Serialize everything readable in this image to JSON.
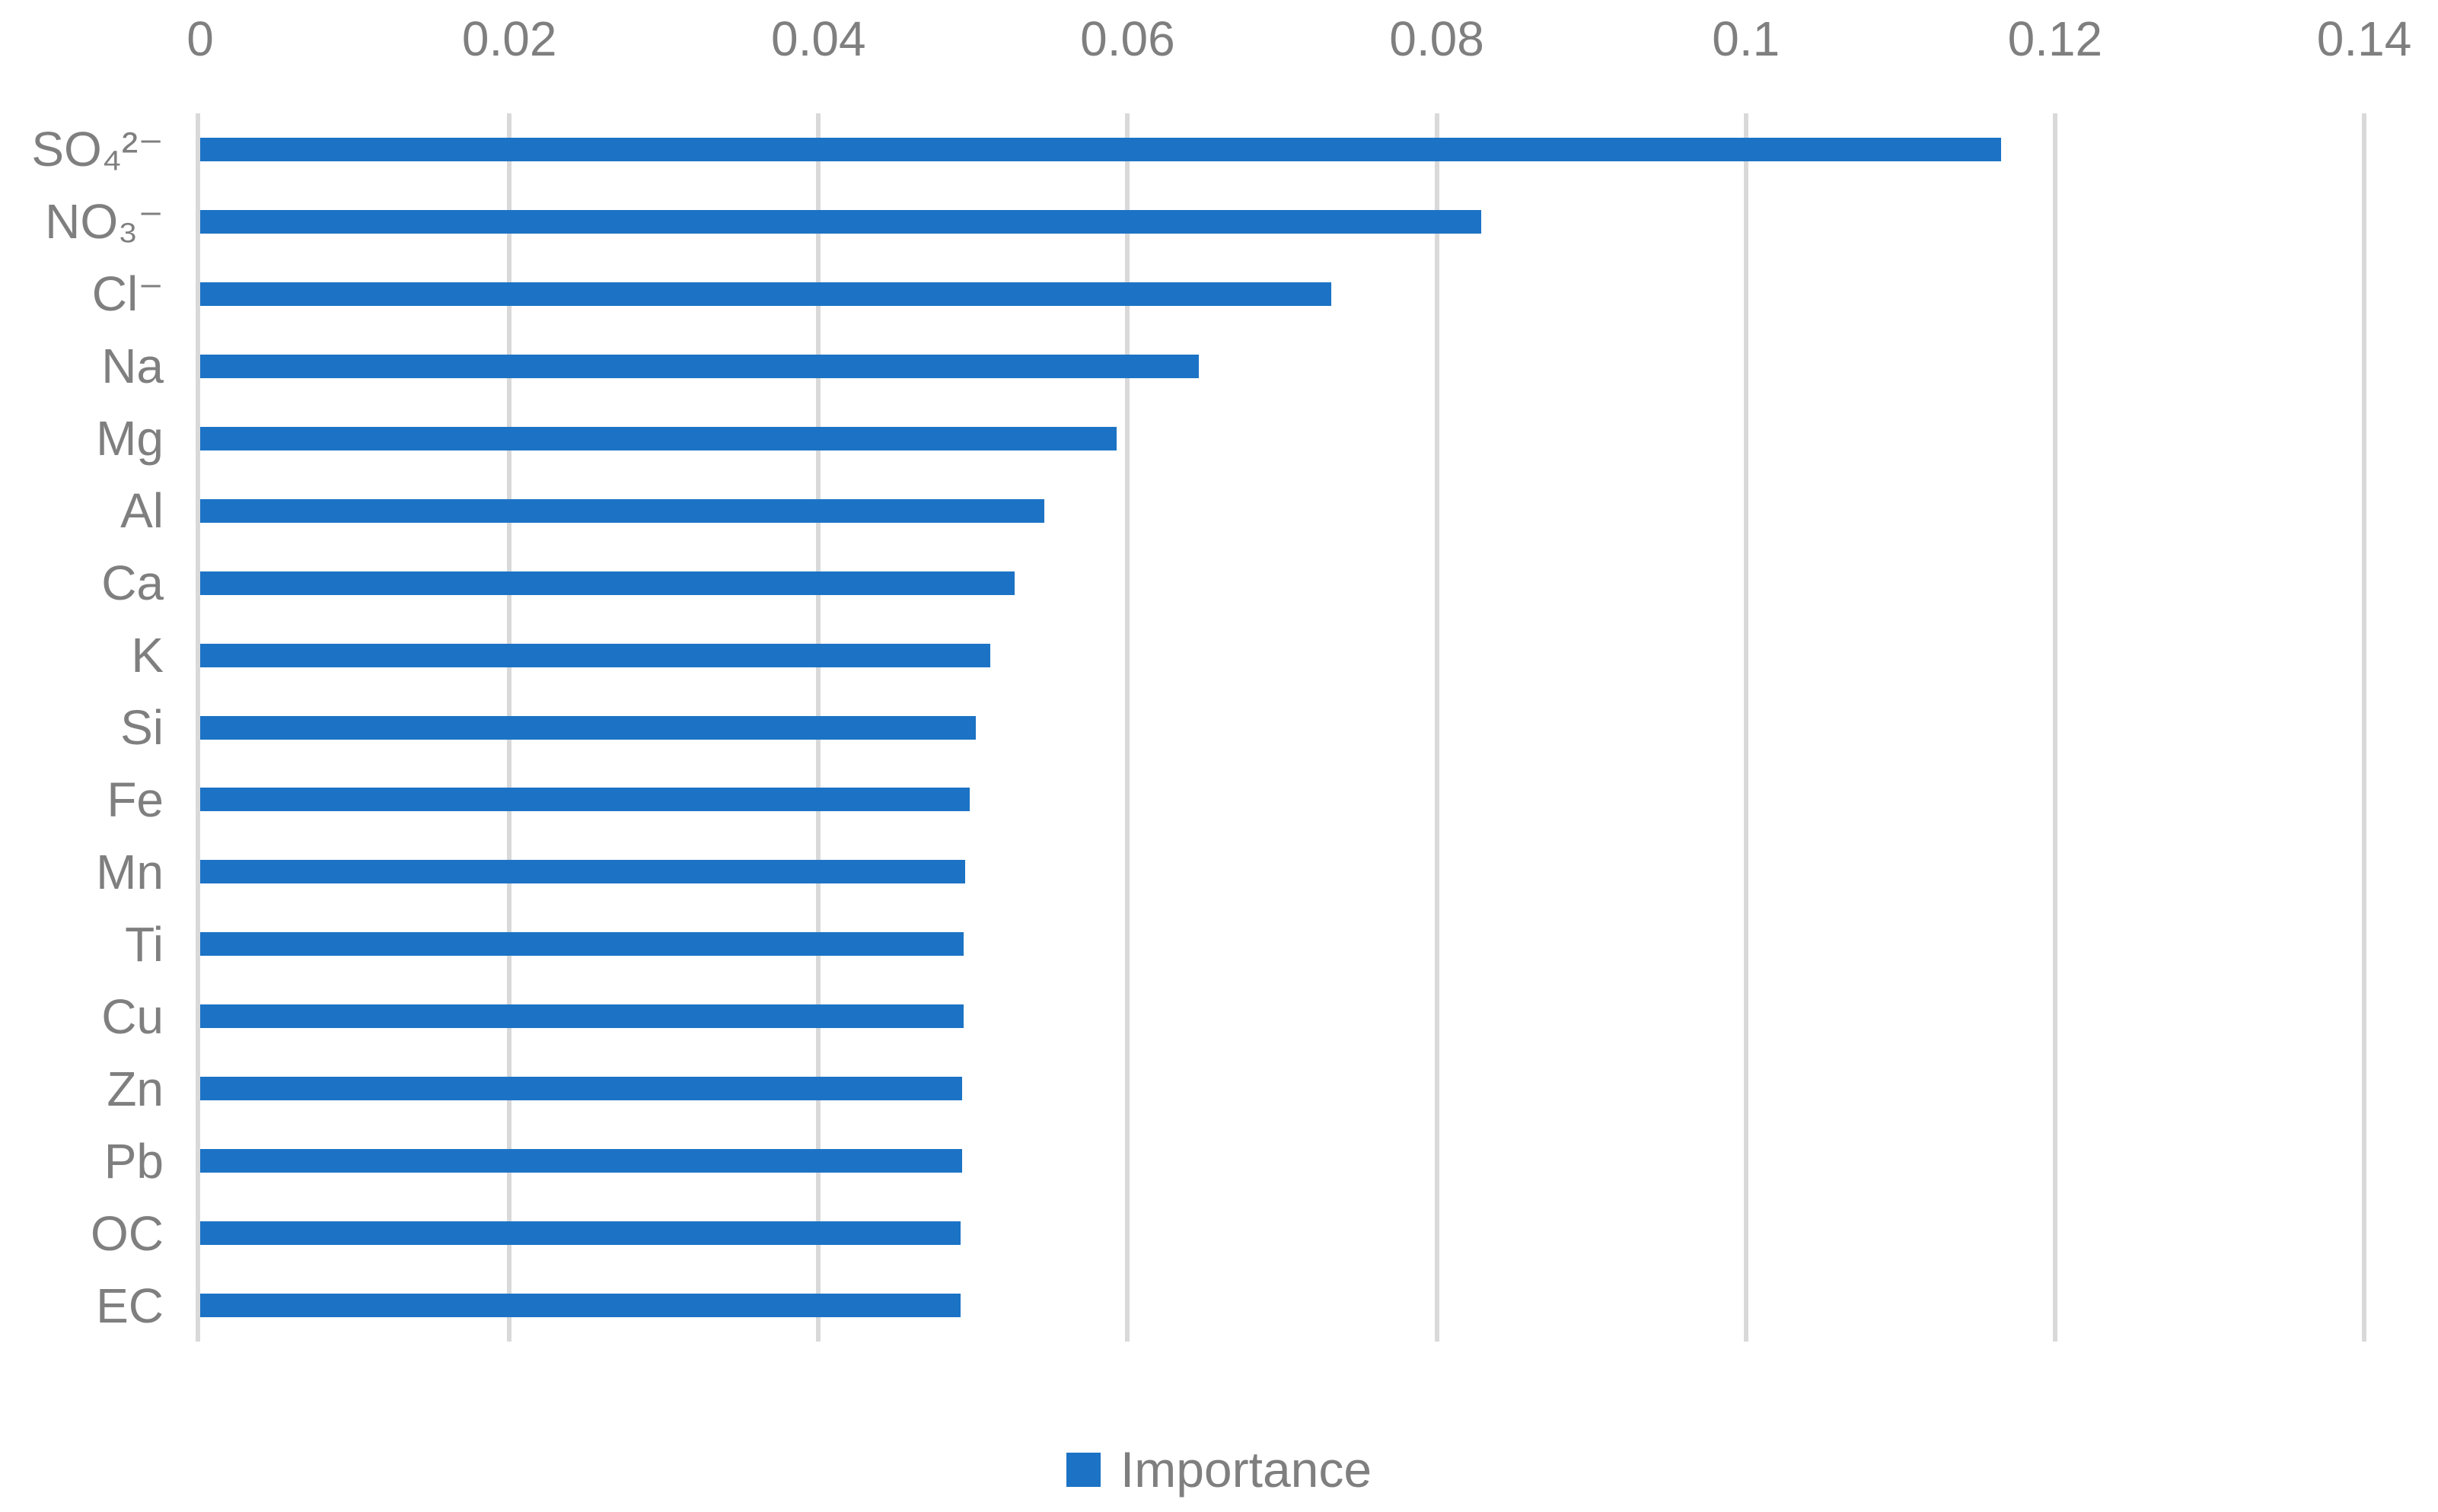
{
  "chart_data": {
    "type": "bar",
    "orientation": "horizontal",
    "title": "",
    "xlabel": "",
    "ylabel": "",
    "categories": [
      "SO₄²⁻",
      "NO₃⁻",
      "Cl⁻",
      "Na",
      "Mg",
      "Al",
      "Ca",
      "K",
      "Si",
      "Fe",
      "Mn",
      "Ti",
      "Cu",
      "Zn",
      "Pb",
      "OC",
      "EC"
    ],
    "values": [
      0.1165,
      0.0829,
      0.0732,
      0.0646,
      0.0593,
      0.0546,
      0.0527,
      0.0511,
      0.0502,
      0.0498,
      0.0495,
      0.0494,
      0.0494,
      0.0493,
      0.0493,
      0.0492,
      0.0492
    ],
    "series_name": "Importance",
    "x_ticks": [
      0,
      0.02,
      0.04,
      0.06,
      0.08,
      0.1,
      0.12,
      0.14
    ],
    "x_tick_labels": [
      "0",
      "0.02",
      "0.04",
      "0.06",
      "0.08",
      "0.1",
      "0.12",
      "0.14"
    ],
    "xlim": [
      0,
      0.14
    ],
    "grid": true,
    "tick_position": "top",
    "legend_position": "bottom",
    "colors": {
      "bar": "#1c73c5",
      "grid": "#d9d9d9",
      "axis": "#d9d9d9",
      "text": "#7f7f7f"
    }
  },
  "legend": {
    "label": "Importance"
  }
}
